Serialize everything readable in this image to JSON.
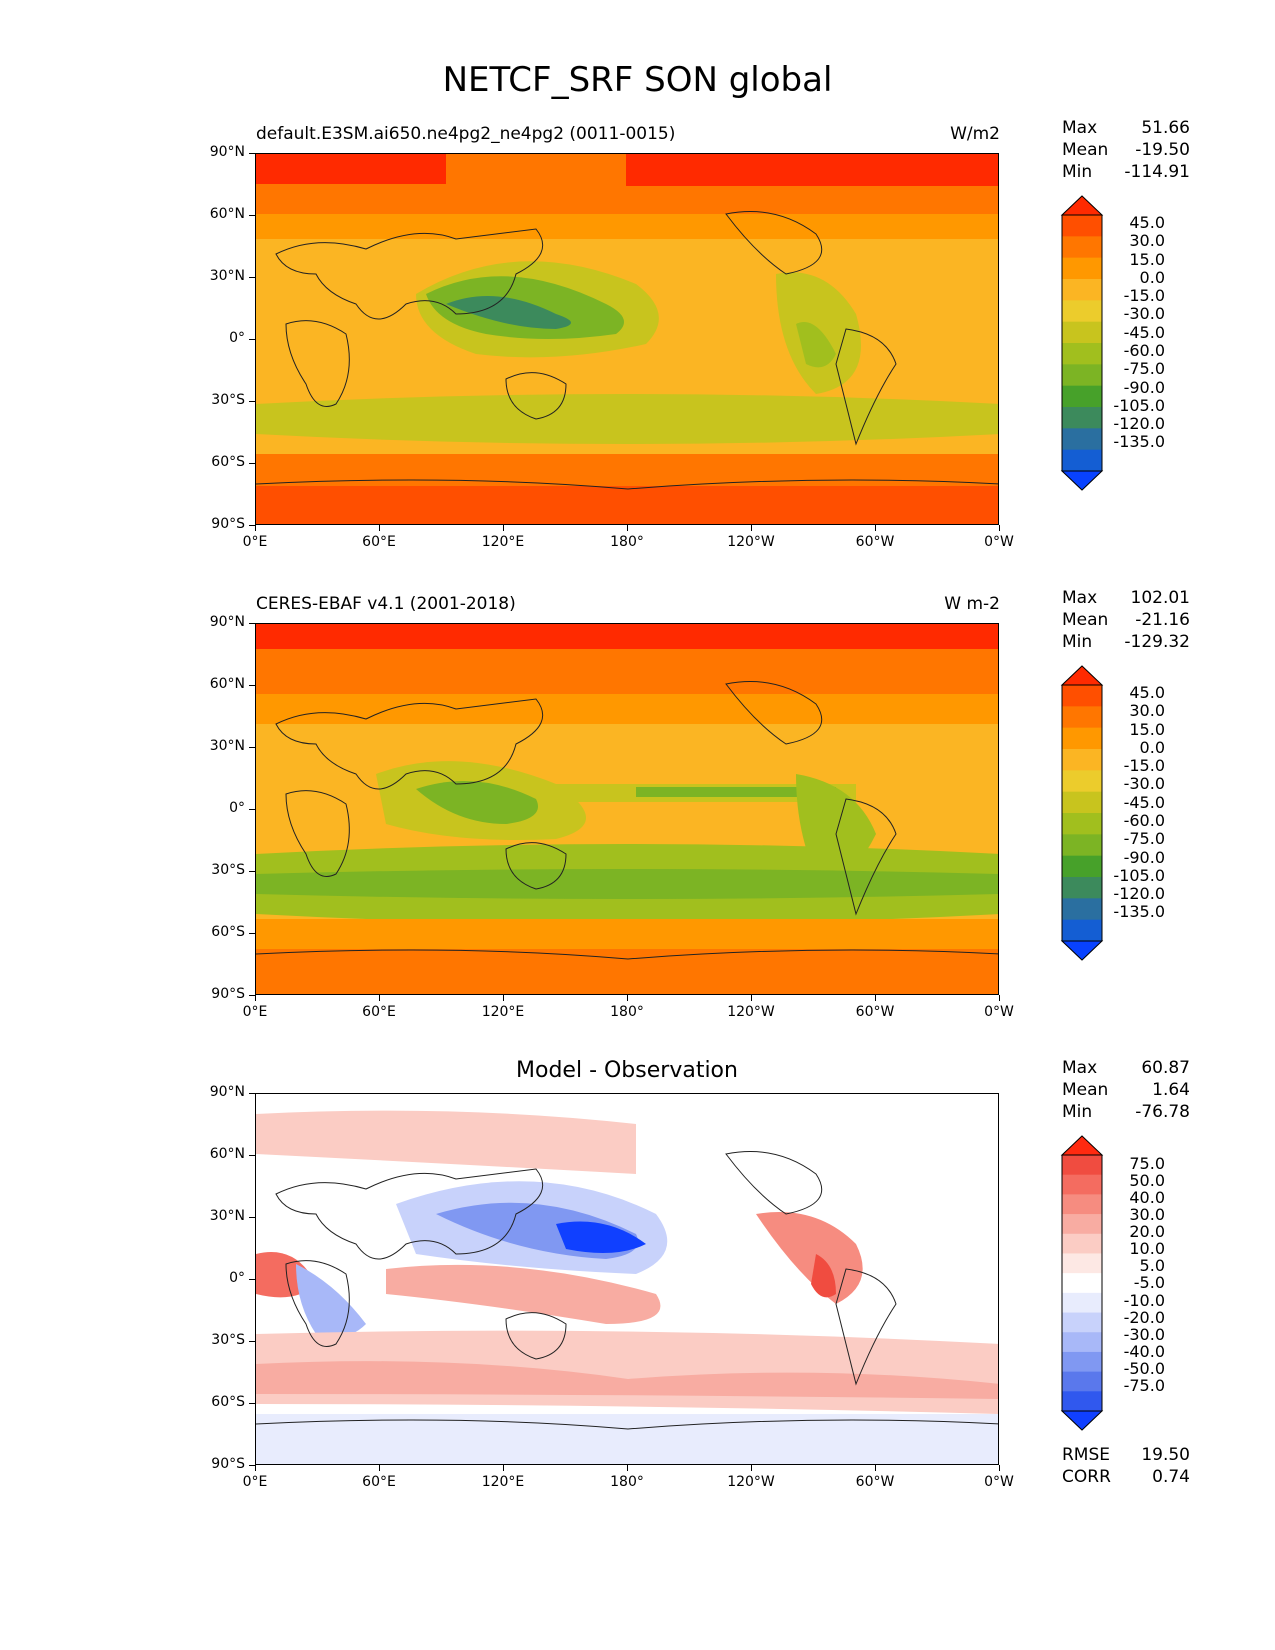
{
  "title": "NETCF_SRF SON global",
  "panels": [
    {
      "left_title": "default.E3SM.ai650.ne4pg2_ne4pg2 (0011-0015)",
      "right_title": "W/m2",
      "center_title": "",
      "stats": {
        "max_label": "Max",
        "max": "51.66",
        "mean_label": "Mean",
        "mean": "-19.50",
        "min_label": "Min",
        "min": "-114.91"
      },
      "colorbar_labels": [
        "45.0",
        "30.0",
        "15.0",
        "0.0",
        "-15.0",
        "-30.0",
        "-45.0",
        "-60.0",
        "-75.0",
        "-90.0",
        "-105.0",
        "-120.0",
        "-135.0"
      ],
      "colorbar_colors": [
        "#ff2a00",
        "#ff4f00",
        "#ff7600",
        "#ff9800",
        "#fbb523",
        "#eccc2c",
        "#c8c41e",
        "#a1bf1e",
        "#7cb424",
        "#47a12a",
        "#3c8a5c",
        "#2a6fa0",
        "#145ed3",
        "#0842ff"
      ]
    },
    {
      "left_title": "CERES-EBAF v4.1 (2001-2018)",
      "right_title": "W m-2",
      "center_title": "",
      "stats": {
        "max_label": "Max",
        "max": "102.01",
        "mean_label": "Mean",
        "mean": "-21.16",
        "min_label": "Min",
        "min": "-129.32"
      },
      "colorbar_labels": [
        "45.0",
        "30.0",
        "15.0",
        "0.0",
        "-15.0",
        "-30.0",
        "-45.0",
        "-60.0",
        "-75.0",
        "-90.0",
        "-105.0",
        "-120.0",
        "-135.0"
      ],
      "colorbar_colors": [
        "#ff2a00",
        "#ff4f00",
        "#ff7600",
        "#ff9800",
        "#fbb523",
        "#eccc2c",
        "#c8c41e",
        "#a1bf1e",
        "#7cb424",
        "#47a12a",
        "#3c8a5c",
        "#2a6fa0",
        "#145ed3",
        "#0842ff"
      ]
    },
    {
      "left_title": "",
      "right_title": "",
      "center_title": "Model - Observation",
      "stats": {
        "max_label": "Max",
        "max": "60.87",
        "mean_label": "Mean",
        "mean": "1.64",
        "min_label": "Min",
        "min": "-76.78"
      },
      "colorbar_labels": [
        "75.0",
        "50.0",
        "40.0",
        "30.0",
        "20.0",
        "10.0",
        "5.0",
        "-5.0",
        "-10.0",
        "-20.0",
        "-30.0",
        "-40.0",
        "-50.0",
        "-75.0"
      ],
      "colorbar_colors": [
        "#ff2a10",
        "#f04c40",
        "#f46c60",
        "#f68c80",
        "#f8aca2",
        "#fbccc4",
        "#fde8e4",
        "#ffffff",
        "#e8ecfd",
        "#c8d2fb",
        "#a8b8f8",
        "#8098f2",
        "#5a78ec",
        "#3058ee",
        "#1040ff"
      ]
    }
  ],
  "lat_labels": [
    "90°N",
    "60°N",
    "30°N",
    "0°",
    "30°S",
    "60°S",
    "90°S"
  ],
  "lon_labels": [
    "0°E",
    "60°E",
    "120°E",
    "180°",
    "120°W",
    "60°W",
    "0°W"
  ],
  "footer": {
    "rmse_label": "RMSE",
    "rmse": "19.50",
    "corr_label": "CORR",
    "corr": "0.74"
  }
}
